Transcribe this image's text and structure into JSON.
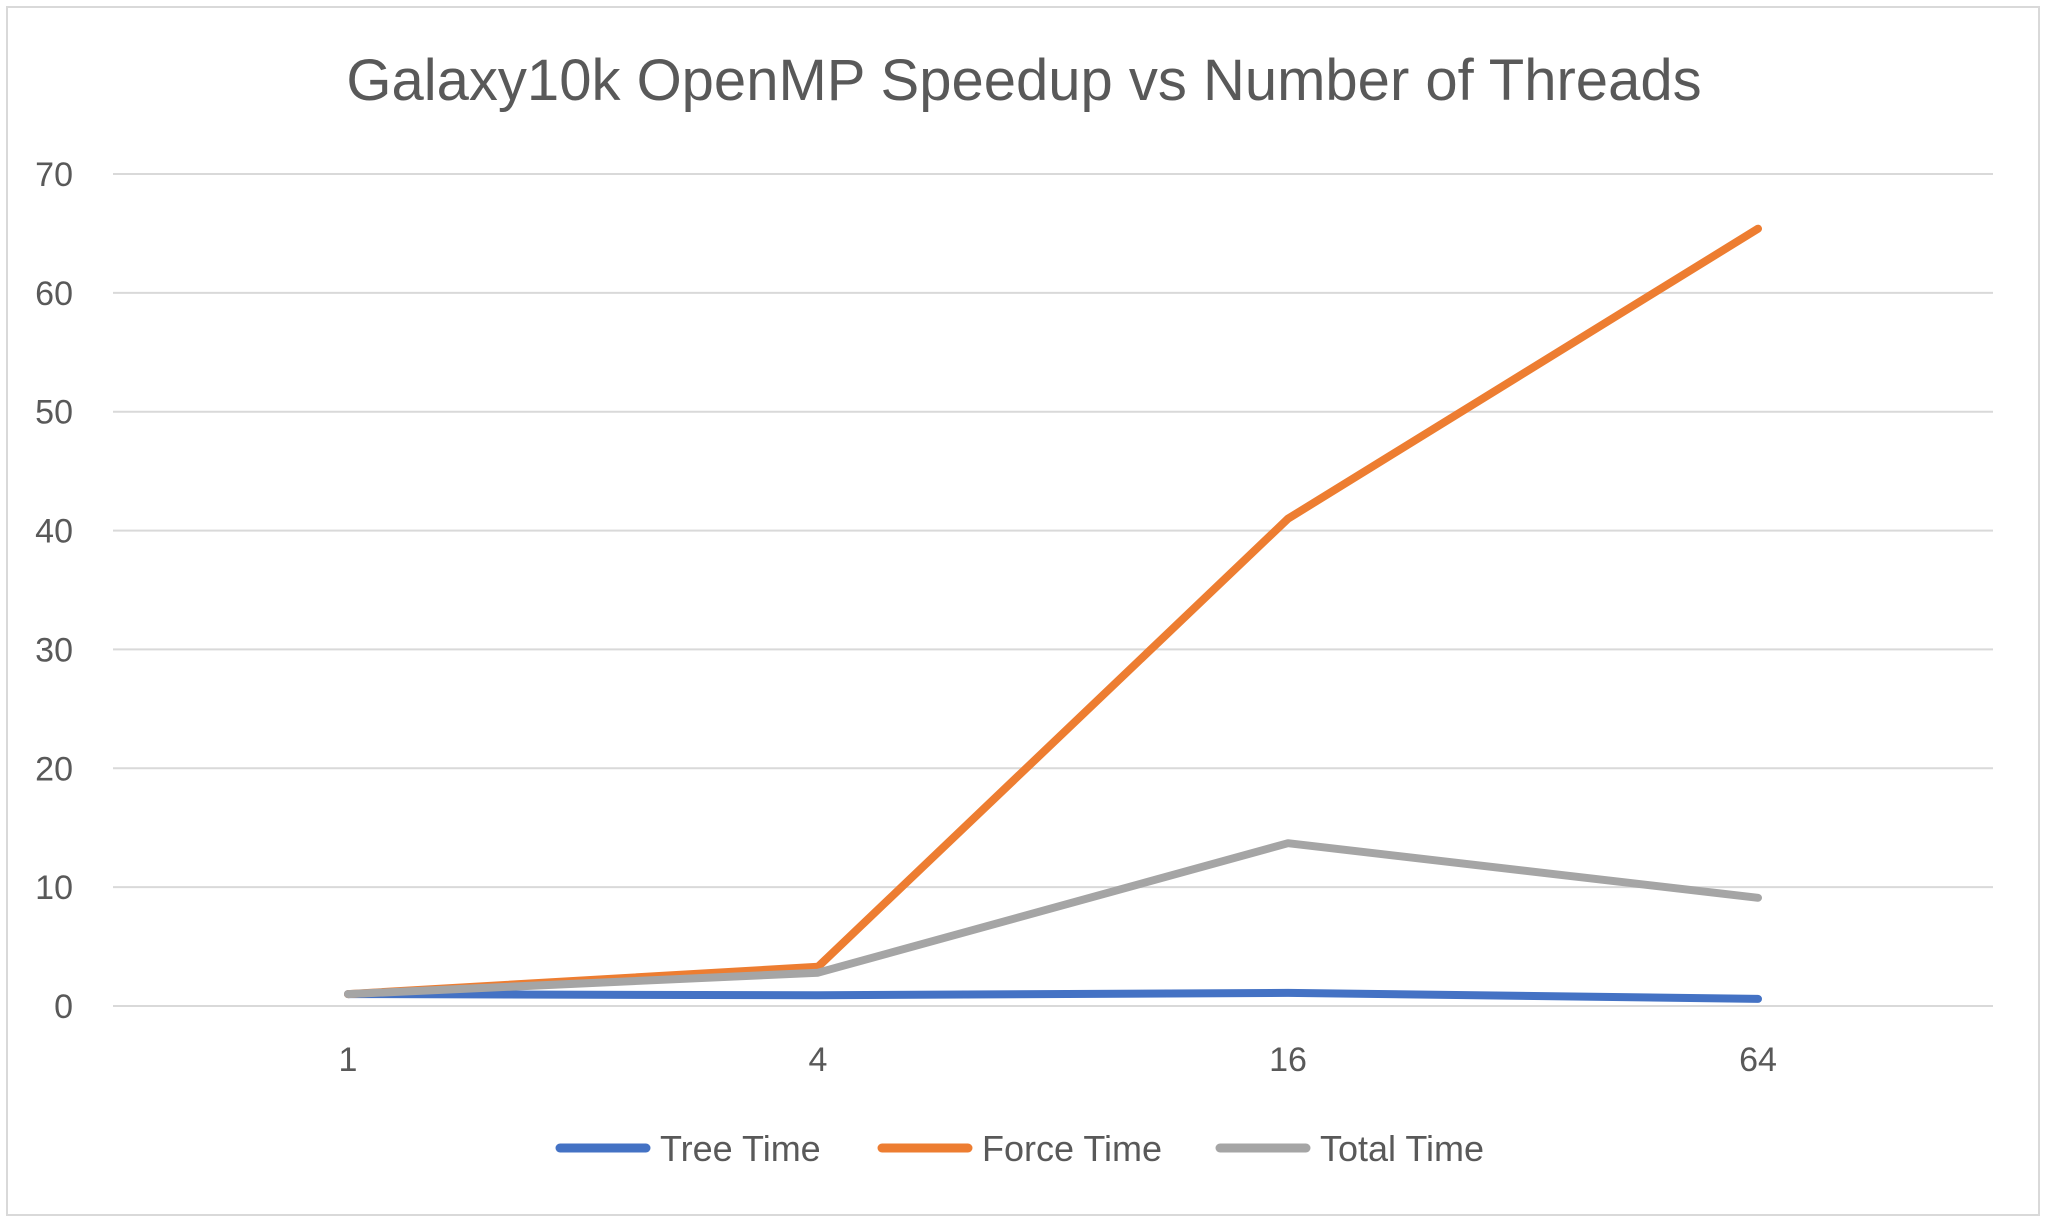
{
  "chart_data": {
    "type": "line",
    "title": "Galaxy10k OpenMP Speedup vs Number of Threads",
    "xlabel": "",
    "ylabel": "",
    "categories": [
      "1",
      "4",
      "16",
      "64"
    ],
    "ylim": [
      0,
      70
    ],
    "yticks": [
      "0",
      "10",
      "20",
      "30",
      "40",
      "50",
      "60",
      "70"
    ],
    "grid": true,
    "legend_position": "bottom",
    "series": [
      {
        "name": "Tree Time",
        "color": "#4472c4",
        "values": [
          1.0,
          0.9,
          1.1,
          0.6
        ]
      },
      {
        "name": "Force Time",
        "color": "#ed7d31",
        "values": [
          1.0,
          3.3,
          41.0,
          65.4
        ]
      },
      {
        "name": "Total Time",
        "color": "#a5a5a5",
        "values": [
          1.0,
          2.8,
          13.7,
          9.1
        ]
      }
    ]
  }
}
